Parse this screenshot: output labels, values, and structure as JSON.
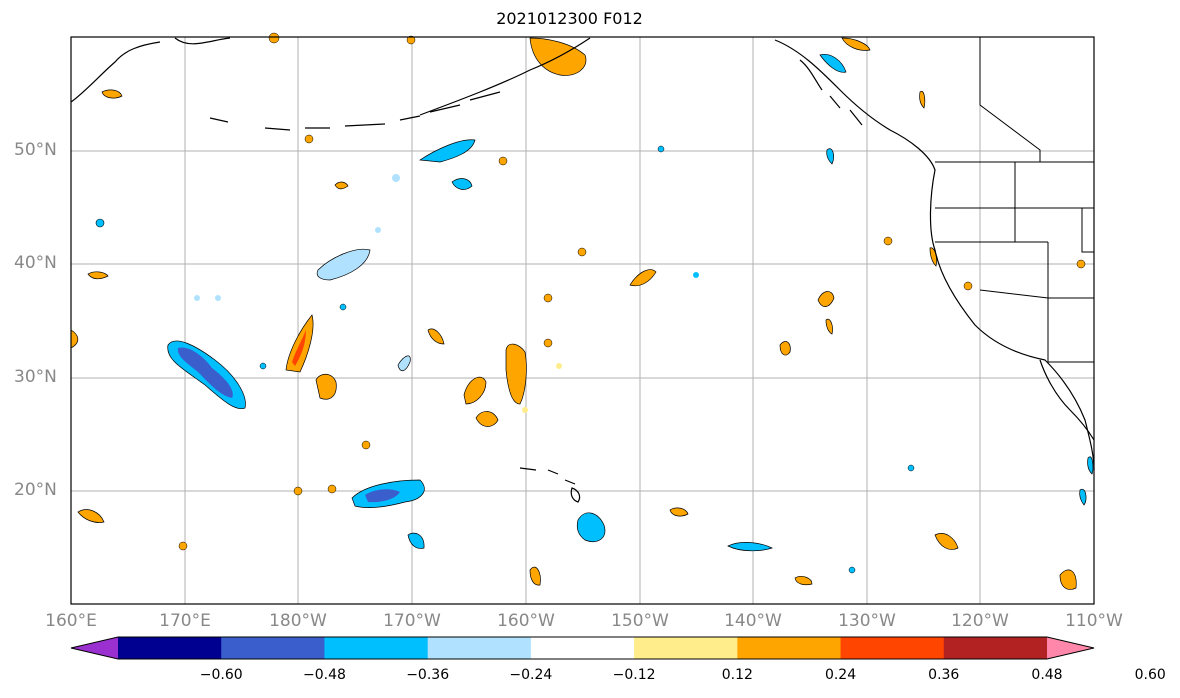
{
  "title": "2021012300 F012",
  "map": {
    "lon_labels": [
      "160°E",
      "170°E",
      "180°W",
      "170°W",
      "160°W",
      "150°W",
      "140°W",
      "130°W",
      "120°W",
      "110°W"
    ],
    "lat_labels": [
      "50°N",
      "40°N",
      "30°N",
      "20°N"
    ],
    "grid": true
  },
  "colorbar": {
    "ticks": [
      "−0.60",
      "−0.48",
      "−0.36",
      "−0.24",
      "−0.12",
      "0.12",
      "0.24",
      "0.36",
      "0.48",
      "0.60"
    ],
    "colors": [
      "#9b30d0",
      "#000090",
      "#3a5fcd",
      "#00bfff",
      "#b0e2ff",
      "#ffffff",
      "#ffec8b",
      "#ffa500",
      "#ff4500",
      "#b22222",
      "#ff88aa"
    ]
  }
}
